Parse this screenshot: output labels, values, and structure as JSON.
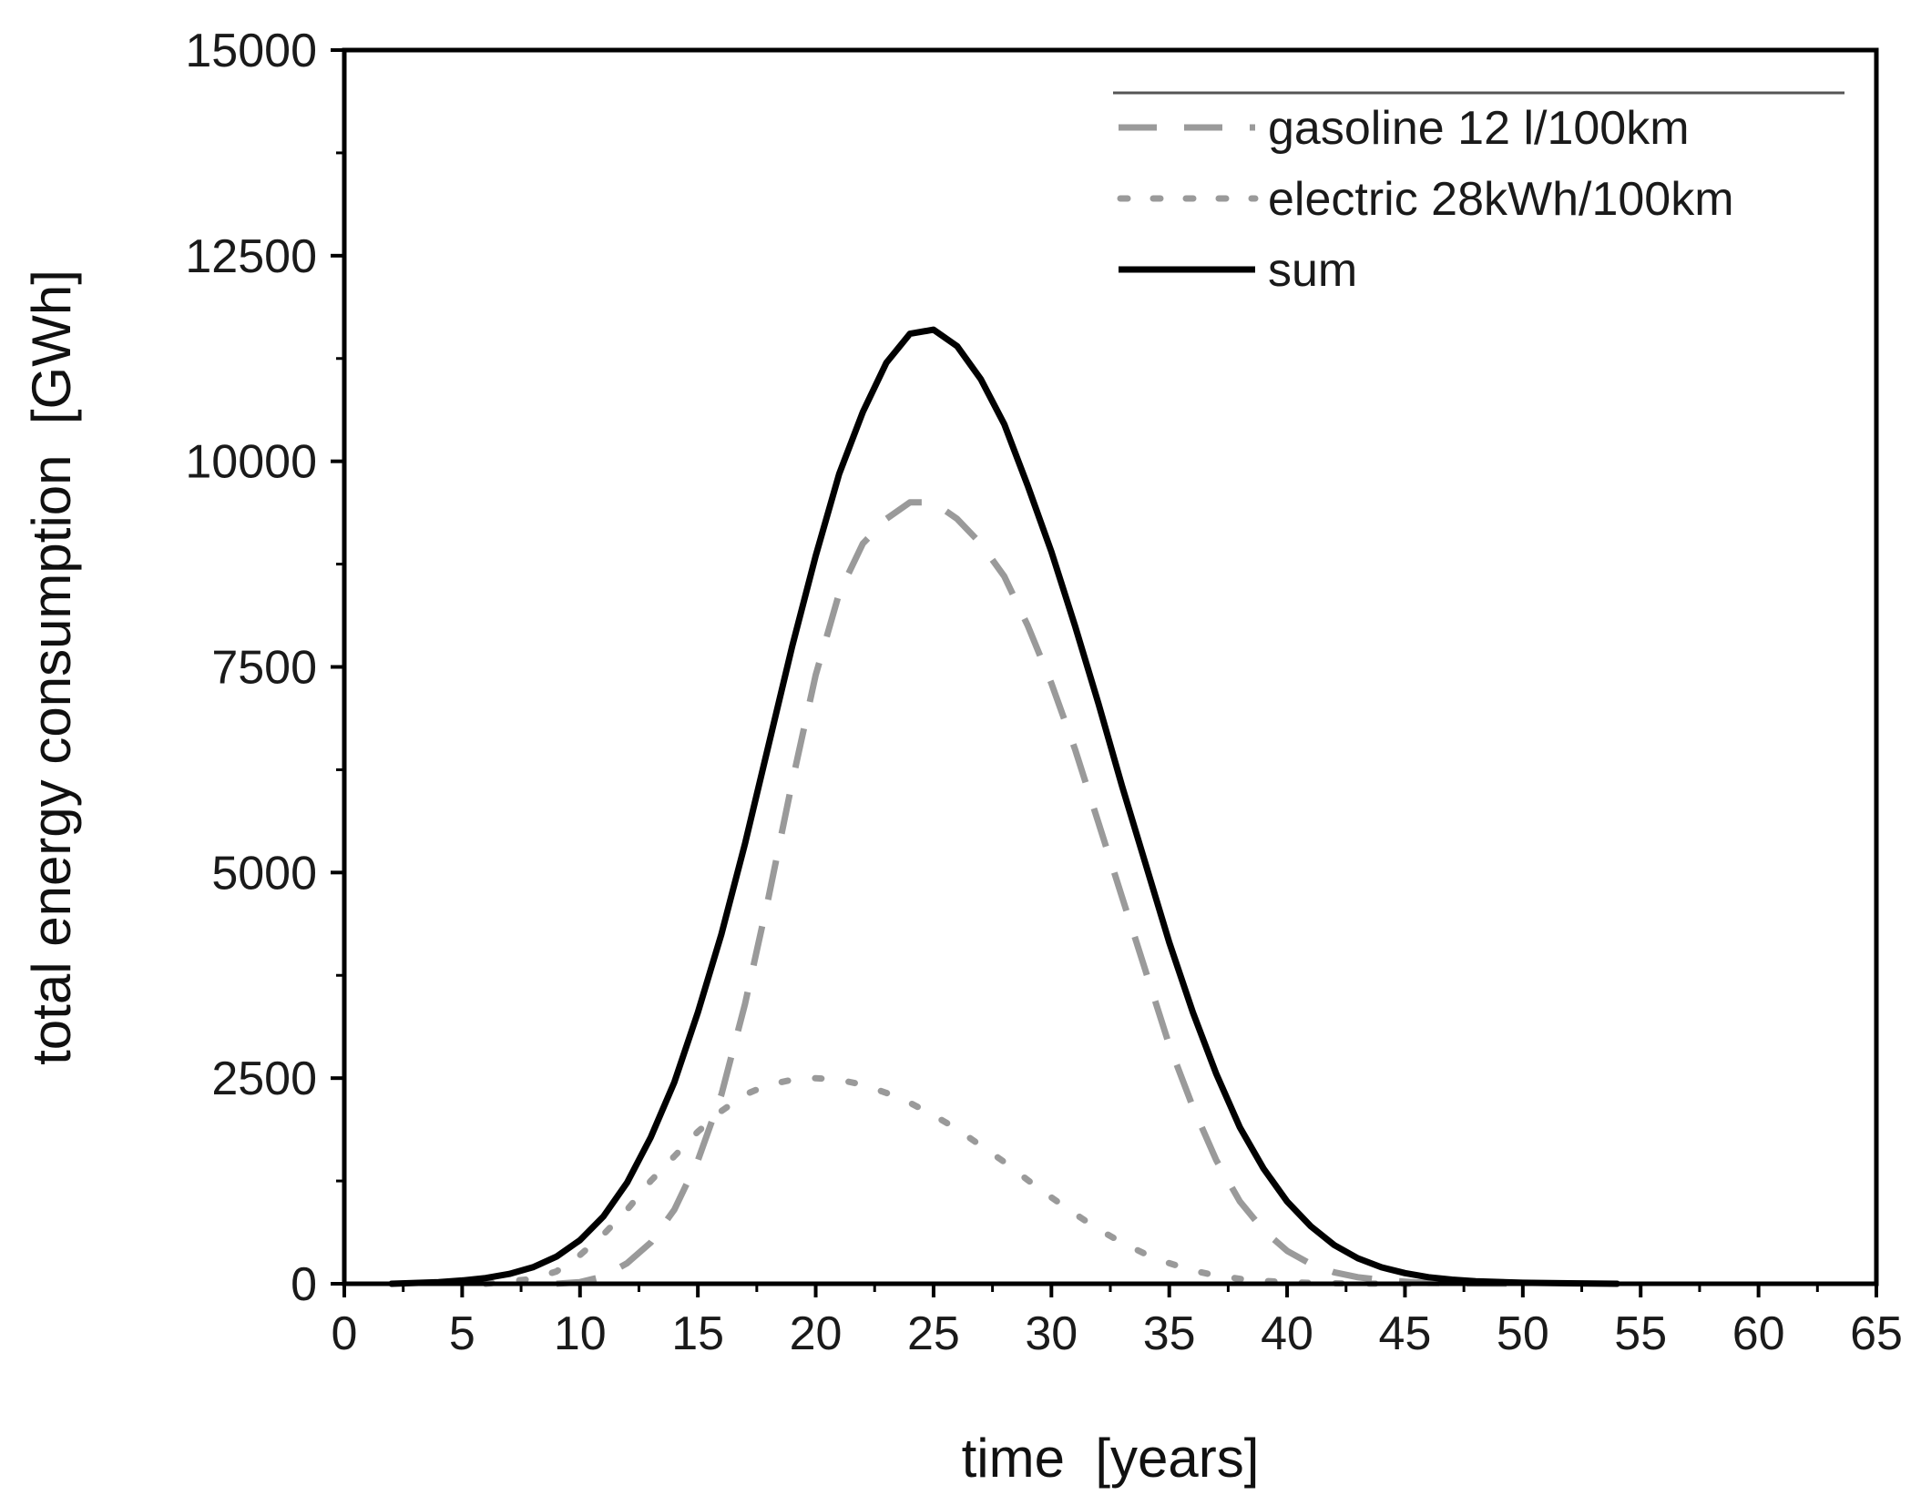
{
  "chart_data": {
    "type": "line",
    "xlabel": "time  [years]",
    "ylabel": "total energy consumption  [GWh]",
    "xlim": [
      0,
      65
    ],
    "ylim": [
      0,
      15000
    ],
    "x_ticks": [
      0,
      5,
      10,
      15,
      20,
      25,
      30,
      35,
      40,
      45,
      50,
      55,
      60,
      65
    ],
    "y_ticks": [
      0,
      2500,
      5000,
      7500,
      10000,
      12500,
      15000
    ],
    "grid": false,
    "legend_position": "top-right",
    "series": [
      {
        "name": "gasoline 12 l/100km",
        "style": "dashed",
        "color": "#9a9a9a",
        "x": [
          9,
          10,
          11,
          12,
          13,
          14,
          15,
          16,
          17,
          18,
          19,
          20,
          21,
          22,
          23,
          24,
          25,
          26,
          27,
          28,
          29,
          30,
          31,
          32,
          33,
          34,
          35,
          36,
          37,
          38,
          39,
          40,
          41,
          42,
          43,
          44,
          45,
          46,
          47,
          48,
          50
        ],
        "y": [
          0,
          20,
          90,
          250,
          500,
          900,
          1500,
          2300,
          3400,
          4700,
          6100,
          7400,
          8400,
          9000,
          9300,
          9500,
          9500,
          9300,
          9000,
          8600,
          8000,
          7300,
          6500,
          5600,
          4700,
          3800,
          2900,
          2150,
          1500,
          1000,
          650,
          400,
          240,
          140,
          80,
          45,
          25,
          10,
          5,
          2,
          0
        ]
      },
      {
        "name": "electric 28kWh/100km",
        "style": "dotted",
        "color": "#9a9a9a",
        "x": [
          6,
          8,
          9,
          10,
          11,
          12,
          13,
          14,
          15,
          16,
          17,
          18,
          19,
          20,
          21,
          22,
          23,
          24,
          25,
          26,
          27,
          28,
          29,
          30,
          31,
          32,
          33,
          34,
          35,
          36,
          37,
          38,
          39,
          40,
          41,
          42,
          44,
          46
        ],
        "y": [
          0,
          60,
          150,
          350,
          600,
          900,
          1250,
          1550,
          1850,
          2100,
          2300,
          2420,
          2480,
          2500,
          2480,
          2420,
          2320,
          2200,
          2050,
          1880,
          1680,
          1480,
          1260,
          1050,
          850,
          660,
          500,
          360,
          250,
          160,
          100,
          60,
          35,
          20,
          10,
          5,
          0,
          0
        ]
      },
      {
        "name": "sum",
        "style": "solid",
        "color": "#000000",
        "x": [
          2,
          3,
          4,
          5,
          6,
          7,
          8,
          9,
          10,
          11,
          12,
          13,
          14,
          15,
          16,
          17,
          18,
          19,
          20,
          21,
          22,
          23,
          24,
          25,
          26,
          27,
          28,
          29,
          30,
          31,
          32,
          33,
          34,
          35,
          36,
          37,
          38,
          39,
          40,
          41,
          42,
          43,
          44,
          45,
          46,
          47,
          48,
          50,
          52,
          54
        ],
        "y": [
          0,
          10,
          20,
          40,
          70,
          120,
          200,
          330,
          530,
          820,
          1230,
          1780,
          2450,
          3300,
          4250,
          5350,
          6550,
          7750,
          8850,
          9850,
          10600,
          11200,
          11550,
          11600,
          11400,
          11000,
          10450,
          9700,
          8900,
          8000,
          7050,
          6050,
          5100,
          4150,
          3300,
          2550,
          1900,
          1400,
          1000,
          700,
          470,
          310,
          200,
          130,
          80,
          50,
          30,
          12,
          5,
          0
        ]
      }
    ]
  }
}
